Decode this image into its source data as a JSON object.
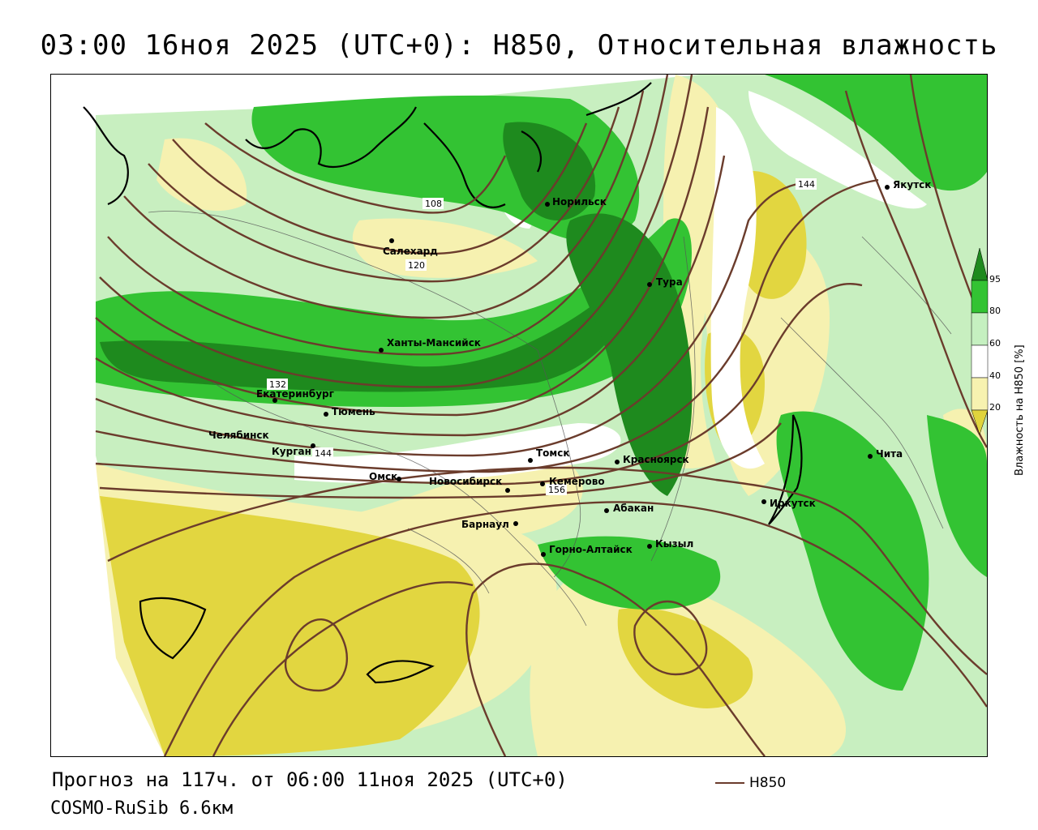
{
  "title": "03:00 16ноя 2025 (UTC+0): H850, Относительная влажность",
  "footer": {
    "forecast": "Прогноз на 117ч. от 06:00 11ноя 2025 (UTC+0)",
    "model": "COSMO-RuSib 6.6км",
    "line_legend_label": "H850"
  },
  "legend": {
    "title": "Влажность на H850 [%]",
    "ticks": [
      "95",
      "80",
      "60",
      "40",
      "20"
    ],
    "colors": [
      "#1e8a1e",
      "#33b833",
      "#c8f0c0",
      "#ffffff",
      "#f4f0a8",
      "#e3d845"
    ]
  },
  "colors": {
    "contour": "#6b3c2c",
    "humid_dark": "#1e8a1e",
    "humid_mid": "#33c333",
    "humid_light": "#c5f0c0",
    "dry_light": "#f7f2b0",
    "dry_dark": "#e0d43c"
  },
  "cities": [
    {
      "name": "Салехард"
    },
    {
      "name": "Норильск"
    },
    {
      "name": "Тура"
    },
    {
      "name": "Якутск"
    },
    {
      "name": "Ханты-Мансийск"
    },
    {
      "name": "Екатеринбург"
    },
    {
      "name": "Тюмень"
    },
    {
      "name": "Челябинск"
    },
    {
      "name": "Курган"
    },
    {
      "name": "Омск"
    },
    {
      "name": "Томск"
    },
    {
      "name": "Красноярск"
    },
    {
      "name": "Новосибирск"
    },
    {
      "name": "Кемерово"
    },
    {
      "name": "Абакан"
    },
    {
      "name": "Барнаул"
    },
    {
      "name": "Горно-Алтайск"
    },
    {
      "name": "Кызыл"
    },
    {
      "name": "Иркутск"
    },
    {
      "name": "Чита"
    }
  ],
  "contour_labels": [
    "108",
    "120",
    "132",
    "144",
    "144",
    "156"
  ]
}
